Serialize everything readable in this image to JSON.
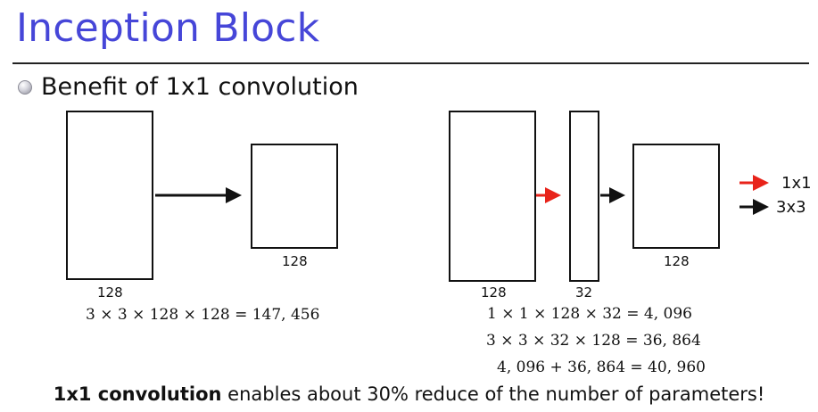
{
  "slide": {
    "title": "Inception Block",
    "bullet": "Benefit of 1x1 convolution"
  },
  "left_diagram": {
    "input_label": "128",
    "output_label": "128",
    "equation": "3 × 3 × 128 × 128 = 147, 456"
  },
  "right_diagram": {
    "input_label": "128",
    "bottleneck_label": "32",
    "output_label": "128",
    "equations": [
      "1 × 1 × 128 × 32 = 4, 096",
      "3 × 3 × 32 × 128 = 36, 864",
      "4, 096 + 36, 864 = 40, 960"
    ]
  },
  "legend": {
    "items": [
      {
        "label": "1x1",
        "color": "#e8231a"
      },
      {
        "label": "3x3",
        "color": "#111111"
      }
    ]
  },
  "conclusion": {
    "bold": "1x1 convolution",
    "rest": " enables about 30% reduce of the number of parameters!"
  }
}
